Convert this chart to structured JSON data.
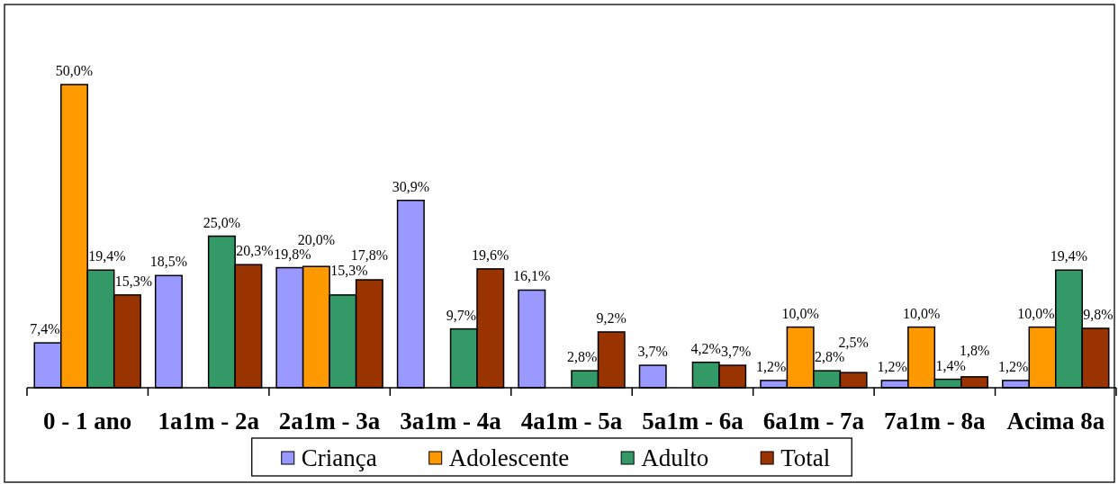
{
  "chart_data": {
    "type": "bar",
    "categories": [
      "0 - 1 ano",
      "1a1m - 2a",
      "2a1m - 3a",
      "3a1m - 4a",
      "4a1m - 5a",
      "5a1m - 6a",
      "6a1m - 7a",
      "7a1m - 8a",
      "Acima 8a"
    ],
    "series": [
      {
        "name": "Criança",
        "color": "#9999ff",
        "values": [
          7.4,
          18.5,
          19.8,
          30.9,
          16.1,
          3.7,
          1.2,
          1.2,
          1.2
        ],
        "value_labels": [
          "7,4%",
          "18,5%",
          "19,8%",
          "30,9%",
          "16,1%",
          "3,7%",
          "1,2%",
          "1,2%",
          "1,2%"
        ]
      },
      {
        "name": "Adolescente",
        "color": "#ff9900",
        "values": [
          50.0,
          null,
          20.0,
          null,
          null,
          null,
          10.0,
          10.0,
          10.0
        ],
        "value_labels": [
          "50,0%",
          null,
          "20,0%",
          null,
          null,
          null,
          "10,0%",
          "10,0%",
          "10,0%"
        ]
      },
      {
        "name": "Adulto",
        "color": "#339966",
        "values": [
          19.4,
          25.0,
          15.3,
          9.7,
          2.8,
          4.2,
          2.8,
          1.4,
          19.4
        ],
        "value_labels": [
          "19,4%",
          "25,0%",
          "15,3%",
          "9,7%",
          "2,8%",
          "4,2%",
          "2,8%",
          "1,4%",
          "19,4%"
        ]
      },
      {
        "name": "Total",
        "color": "#993300",
        "values": [
          15.3,
          20.3,
          17.8,
          19.6,
          9.2,
          3.7,
          2.5,
          1.8,
          9.8
        ],
        "value_labels": [
          "15,3%",
          "20,3%",
          "17,8%",
          "19,6%",
          "9,2%",
          "3,7%",
          "2,5%",
          "1,8%",
          "9,8%"
        ]
      }
    ],
    "tick_labels": "x",
    "legend": "bottom"
  }
}
